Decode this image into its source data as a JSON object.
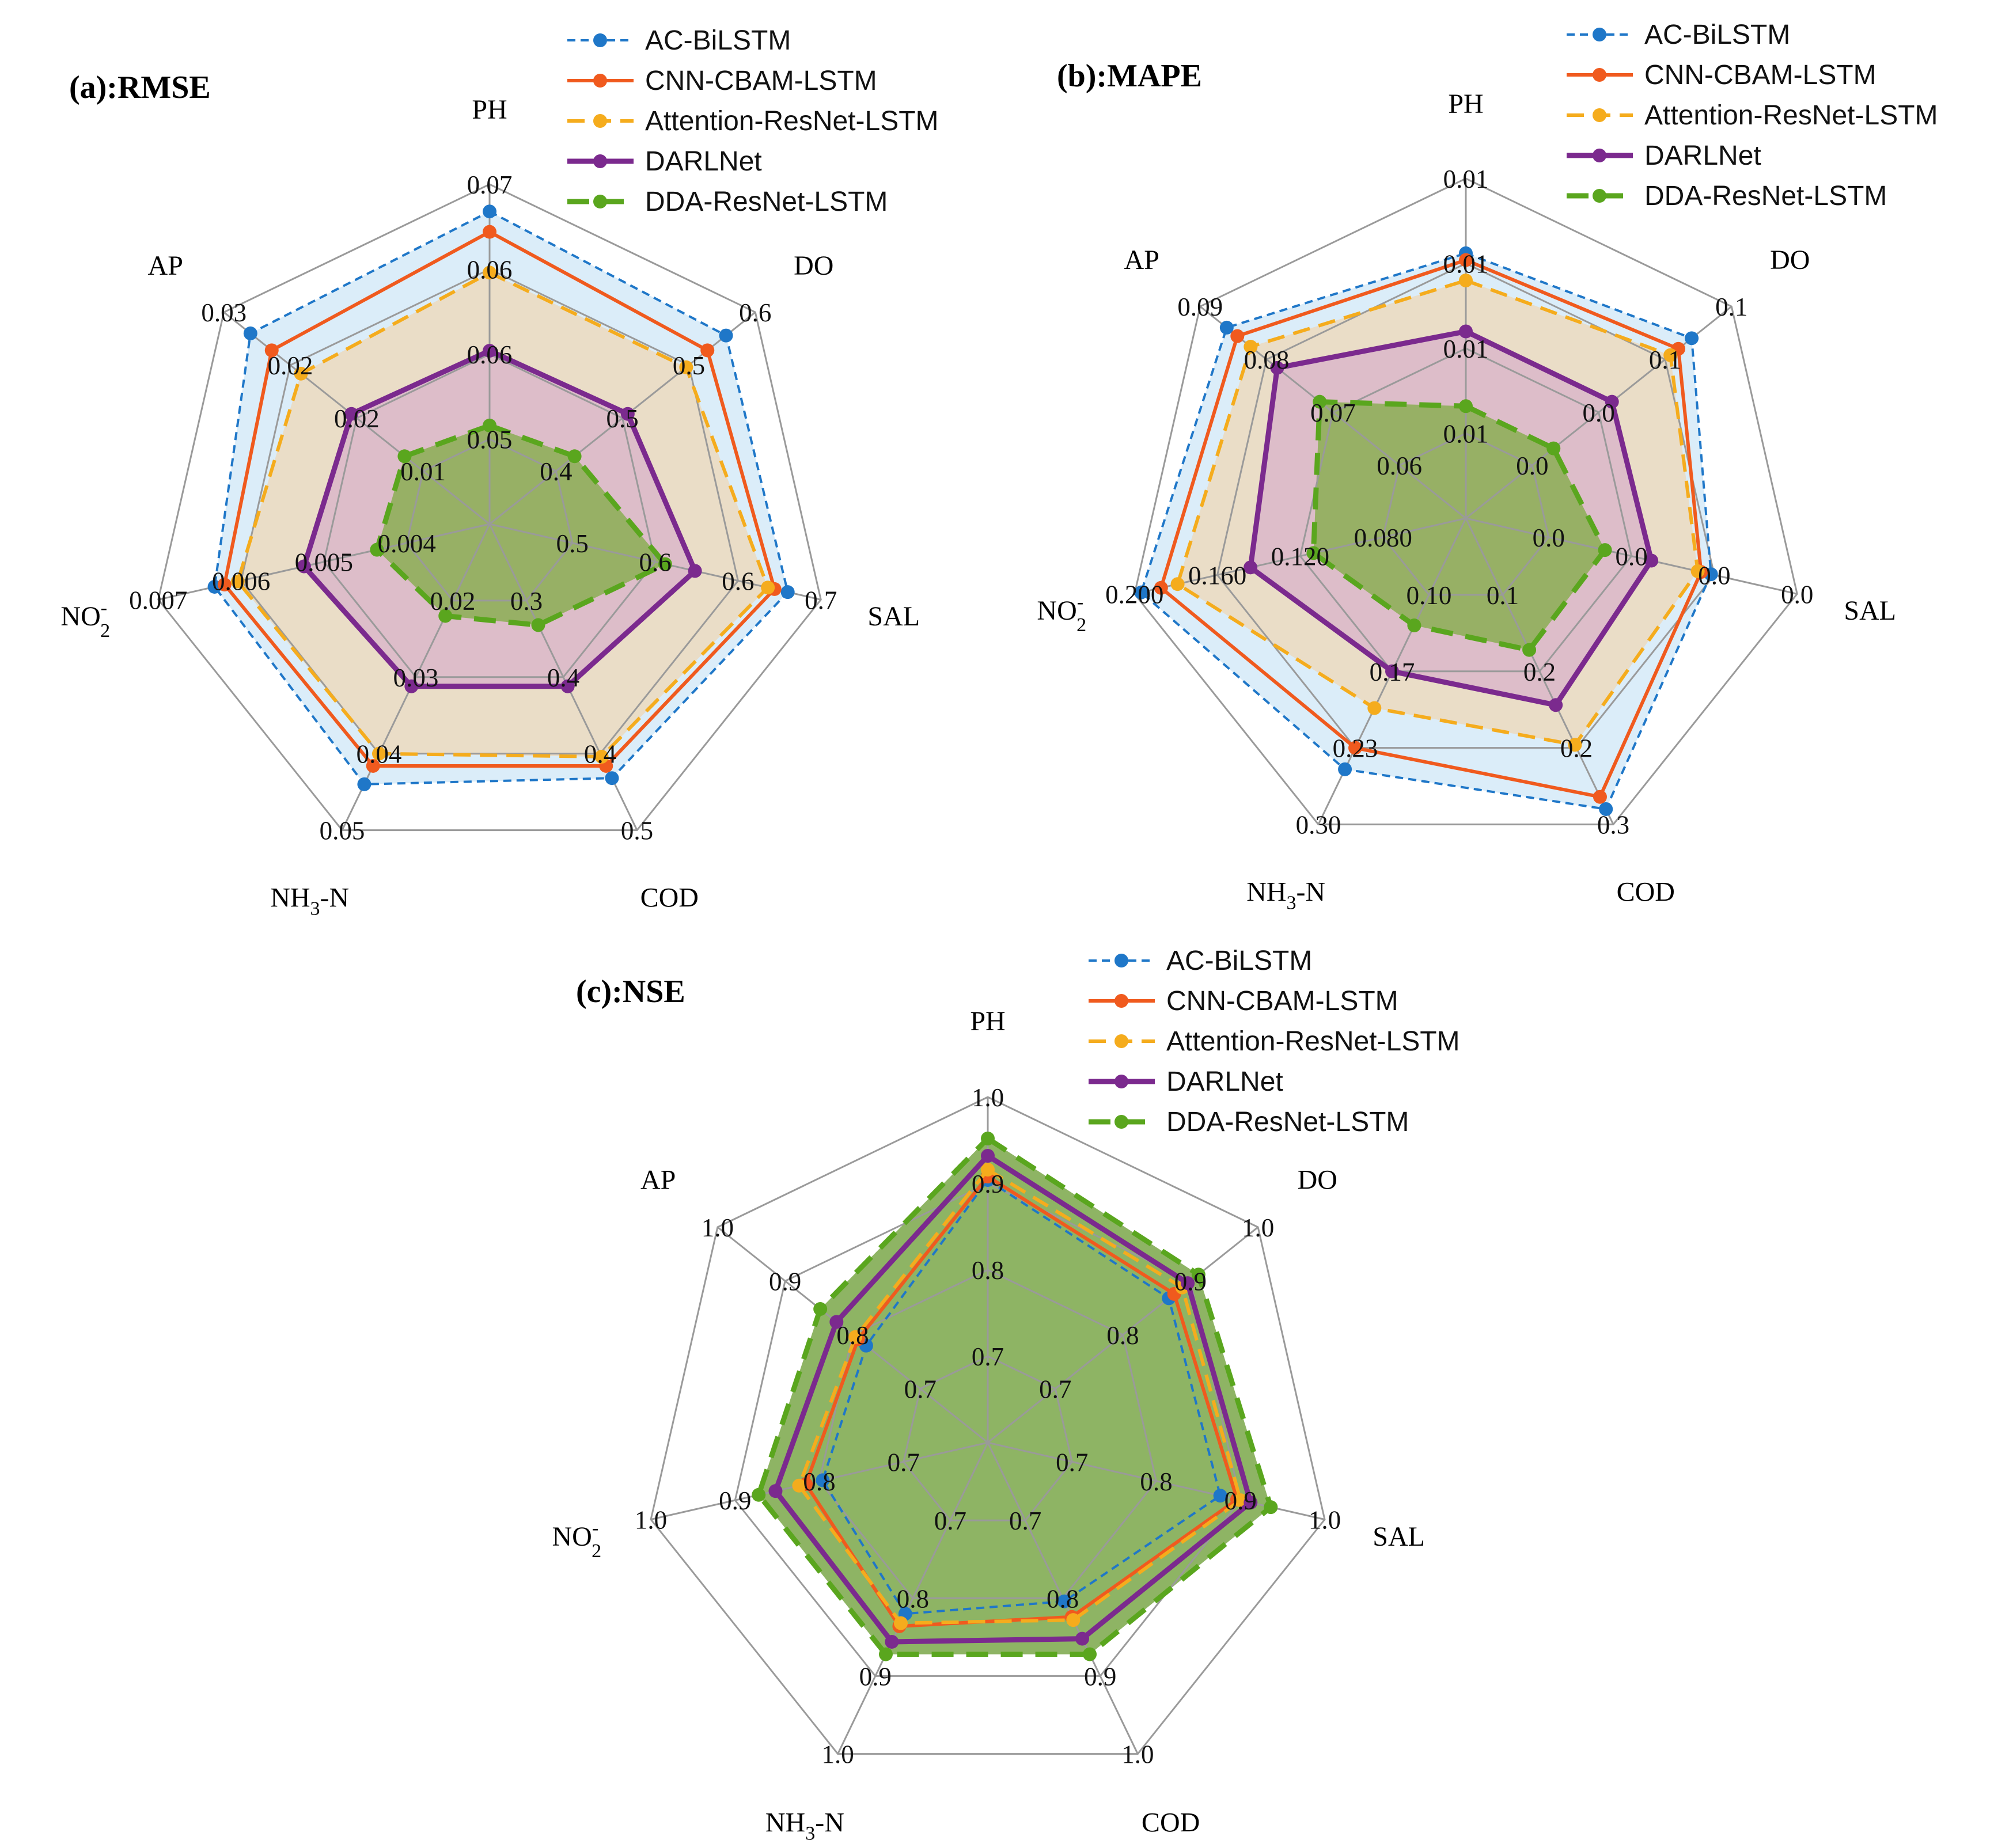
{
  "figure": {
    "panel_count": 3
  },
  "legend_style": {
    "AC-BiLSTM": {
      "color": "#1f77c8",
      "dash": "dashed-fine",
      "width": "thin"
    },
    "CNN-CBAM-LSTM": {
      "color": "#f05a1e",
      "dash": "solid",
      "width": "medium"
    },
    "Attention-ResNet-LSTM": {
      "color": "#f5ac1d",
      "dash": "dashed",
      "width": "medium"
    },
    "DARLNet": {
      "color": "#7b2a8e",
      "dash": "solid",
      "width": "thick"
    },
    "DDA-ResNet-LSTM": {
      "color": "#5aa61e",
      "dash": "dashed-bold",
      "width": "thick"
    }
  },
  "chart_data": [
    {
      "panel": "a",
      "type": "radar",
      "title": "(a):RMSE",
      "axes": [
        {
          "name": "PH",
          "ticks": [
            "0.05",
            "0.06",
            "0.06",
            "0.07"
          ]
        },
        {
          "name": "DO",
          "ticks": [
            "0.4",
            "0.5",
            "0.5",
            "0.6"
          ]
        },
        {
          "name": "SAL",
          "ticks": [
            "0.5",
            "0.6",
            "0.6",
            "0.7"
          ]
        },
        {
          "name": "COD",
          "ticks": [
            "0.3",
            "0.4",
            "0.4",
            "0.5"
          ]
        },
        {
          "name": "NH",
          "sub": "3",
          "sup": "",
          "tail": "-N",
          "ticks": [
            "0.02",
            "0.03",
            "0.04",
            "0.05"
          ]
        },
        {
          "name": "NO",
          "sub": "2",
          "sup": "-",
          "tail": "",
          "ticks": [
            "0.004",
            "0.005",
            "0.006",
            "0.007"
          ]
        },
        {
          "name": "AP",
          "ticks": [
            "0.01",
            "0.02",
            "0.02",
            "0.03"
          ]
        }
      ],
      "legend": [
        "AC-BiLSTM",
        "CNN-CBAM-LSTM",
        "Attention-ResNet-LSTM",
        "DARLNet",
        "DDA-ResNet-LSTM"
      ],
      "series": [
        {
          "name": "AC-BiLSTM",
          "values": [
            0.92,
            0.89,
            0.9,
            0.83,
            0.85,
            0.83,
            0.9
          ],
          "fill": "#cfe7f7"
        },
        {
          "name": "CNN-CBAM-LSTM",
          "values": [
            0.86,
            0.82,
            0.86,
            0.79,
            0.79,
            0.8,
            0.82
          ],
          "fill": "none"
        },
        {
          "name": "Attention-ResNet-LSTM",
          "values": [
            0.74,
            0.74,
            0.84,
            0.76,
            0.75,
            0.76,
            0.71
          ],
          "fill": "#efd7b6"
        },
        {
          "name": "DARLNet",
          "values": [
            0.51,
            0.52,
            0.62,
            0.53,
            0.53,
            0.56,
            0.52
          ],
          "fill": "#d8b2c9"
        },
        {
          "name": "DDA-ResNet-LSTM",
          "values": [
            0.29,
            0.32,
            0.53,
            0.33,
            0.3,
            0.34,
            0.32
          ],
          "fill": "#7fac43"
        }
      ]
    },
    {
      "panel": "b",
      "type": "radar",
      "title": "(b):MAPE",
      "axes": [
        {
          "name": "PH",
          "ticks": [
            "0.01",
            "0.01",
            "0.01",
            "0.01"
          ]
        },
        {
          "name": "DO",
          "ticks": [
            "0.0",
            "0.0",
            "0.1",
            "0.1"
          ]
        },
        {
          "name": "SAL",
          "ticks": [
            "0.0",
            "0.0",
            "0.0",
            "0.0"
          ]
        },
        {
          "name": "COD",
          "ticks": [
            "0.1",
            "0.2",
            "0.2",
            "0.3"
          ]
        },
        {
          "name": "NH",
          "sub": "3",
          "sup": "",
          "tail": "-N",
          "ticks": [
            "0.10",
            "0.17",
            "0.23",
            "0.30"
          ]
        },
        {
          "name": "NO",
          "sub": "2",
          "sup": "-",
          "tail": "",
          "ticks": [
            "0.080",
            "0.120",
            "0.160",
            "0.200"
          ]
        },
        {
          "name": "AP",
          "ticks": [
            "0.06",
            "0.07",
            "0.08",
            "0.09"
          ]
        }
      ],
      "legend": [
        "AC-BiLSTM",
        "CNN-CBAM-LSTM",
        "Attention-ResNet-LSTM",
        "DARLNet",
        "DDA-ResNet-LSTM"
      ],
      "series": [
        {
          "name": "AC-BiLSTM",
          "values": [
            0.78,
            0.85,
            0.74,
            0.95,
            0.82,
            0.98,
            0.9
          ],
          "fill": "#cfe7f7"
        },
        {
          "name": "CNN-CBAM-LSTM",
          "values": [
            0.76,
            0.8,
            0.71,
            0.91,
            0.75,
            0.92,
            0.86
          ],
          "fill": "none"
        },
        {
          "name": "Attention-ResNet-LSTM",
          "values": [
            0.7,
            0.77,
            0.7,
            0.74,
            0.62,
            0.87,
            0.81
          ],
          "fill": "#efd7b6"
        },
        {
          "name": "DARLNet",
          "values": [
            0.55,
            0.55,
            0.56,
            0.61,
            0.5,
            0.65,
            0.71
          ],
          "fill": "#d8b2c9"
        },
        {
          "name": "DDA-ResNet-LSTM",
          "values": [
            0.33,
            0.33,
            0.42,
            0.43,
            0.35,
            0.46,
            0.55
          ],
          "fill": "#7fac43"
        }
      ]
    },
    {
      "panel": "c",
      "type": "radar",
      "title": "(c):NSE",
      "axes": [
        {
          "name": "PH",
          "ticks": [
            "0.7",
            "0.8",
            "0.9",
            "1.0"
          ]
        },
        {
          "name": "DO",
          "ticks": [
            "0.7",
            "0.8",
            "0.9",
            "1.0"
          ]
        },
        {
          "name": "SAL",
          "ticks": [
            "0.7",
            "0.8",
            "0.9",
            "1.0"
          ]
        },
        {
          "name": "COD",
          "ticks": [
            "0.7",
            "0.8",
            "0.9",
            "1.0"
          ]
        },
        {
          "name": "NH",
          "sub": "3",
          "sup": "",
          "tail": "-N",
          "ticks": [
            "0.7",
            "0.8",
            "0.9",
            "1.0"
          ]
        },
        {
          "name": "NO",
          "sub": "2",
          "sup": "-",
          "tail": "",
          "ticks": [
            "0.7",
            "0.8",
            "0.9",
            "1.0"
          ]
        },
        {
          "name": "AP",
          "ticks": [
            "0.7",
            "0.8",
            "0.9",
            "1.0"
          ]
        }
      ],
      "legend": [
        "AC-BiLSTM",
        "CNN-CBAM-LSTM",
        "Attention-ResNet-LSTM",
        "DARLNet",
        "DDA-ResNet-LSTM"
      ],
      "series": [
        {
          "name": "AC-BiLSTM",
          "values": [
            0.76,
            0.67,
            0.69,
            0.51,
            0.55,
            0.49,
            0.45
          ],
          "fill": "none"
        },
        {
          "name": "CNN-CBAM-LSTM",
          "values": [
            0.77,
            0.69,
            0.74,
            0.56,
            0.59,
            0.54,
            0.48
          ],
          "fill": "none"
        },
        {
          "name": "Attention-ResNet-LSTM",
          "values": [
            0.79,
            0.72,
            0.75,
            0.57,
            0.58,
            0.56,
            0.49
          ],
          "fill": "none"
        },
        {
          "name": "DARLNet",
          "values": [
            0.83,
            0.74,
            0.78,
            0.63,
            0.64,
            0.63,
            0.56
          ],
          "fill": "none"
        },
        {
          "name": "DDA-ResNet-LSTM",
          "values": [
            0.88,
            0.78,
            0.84,
            0.68,
            0.68,
            0.68,
            0.62
          ],
          "fill": "#88b05c"
        }
      ]
    }
  ]
}
